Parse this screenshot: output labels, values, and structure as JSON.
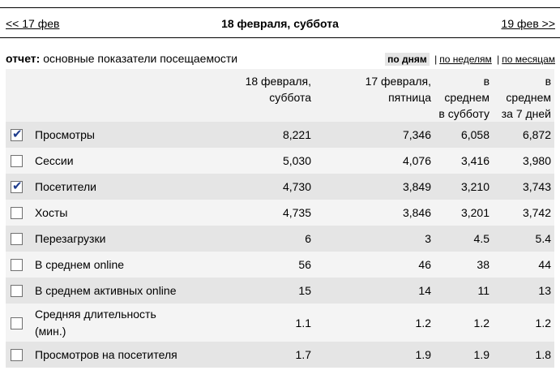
{
  "nav": {
    "prev": "<< 17 фев",
    "current": "18 февраля, суббота",
    "next": "19 фев >>"
  },
  "report": {
    "label": "отчет:",
    "name": "основные показатели посещаемости"
  },
  "periods": {
    "days": "по дням",
    "weeks": "по неделям",
    "months": "по месяцам",
    "separator": "|"
  },
  "columns": [
    {
      "line1": "18 февраля,",
      "line2": "суббота"
    },
    {
      "line1": "17 февраля,",
      "line2": "пятница"
    },
    {
      "line1": "в",
      "line2": "среднем",
      "line3": "в субботу"
    },
    {
      "line1": "в",
      "line2": "среднем",
      "line3": "за 7 дней"
    }
  ],
  "rows": [
    {
      "checked": true,
      "label": "Просмотры",
      "v": [
        "8,221",
        "7,346",
        "6,058",
        "6,872"
      ]
    },
    {
      "checked": false,
      "label": "Сессии",
      "v": [
        "5,030",
        "4,076",
        "3,416",
        "3,980"
      ]
    },
    {
      "checked": true,
      "label": "Посетители",
      "v": [
        "4,730",
        "3,849",
        "3,210",
        "3,743"
      ]
    },
    {
      "checked": false,
      "label": "Хосты",
      "v": [
        "4,735",
        "3,846",
        "3,201",
        "3,742"
      ]
    },
    {
      "checked": false,
      "label": "Перезагрузки",
      "v": [
        "6",
        "3",
        "4.5",
        "5.4"
      ]
    },
    {
      "checked": false,
      "label": "В среднем online",
      "v": [
        "56",
        "46",
        "38",
        "44"
      ]
    },
    {
      "checked": false,
      "label": "В среднем активных online",
      "v": [
        "15",
        "14",
        "11",
        "13"
      ]
    },
    {
      "checked": false,
      "label": "Средняя длительность",
      "label2": "(мин.)",
      "v": [
        "1.1",
        "1.2",
        "1.2",
        "1.2"
      ]
    },
    {
      "checked": false,
      "label": "Просмотров на посетителя",
      "v": [
        "1.7",
        "1.9",
        "1.9",
        "1.8"
      ]
    }
  ]
}
